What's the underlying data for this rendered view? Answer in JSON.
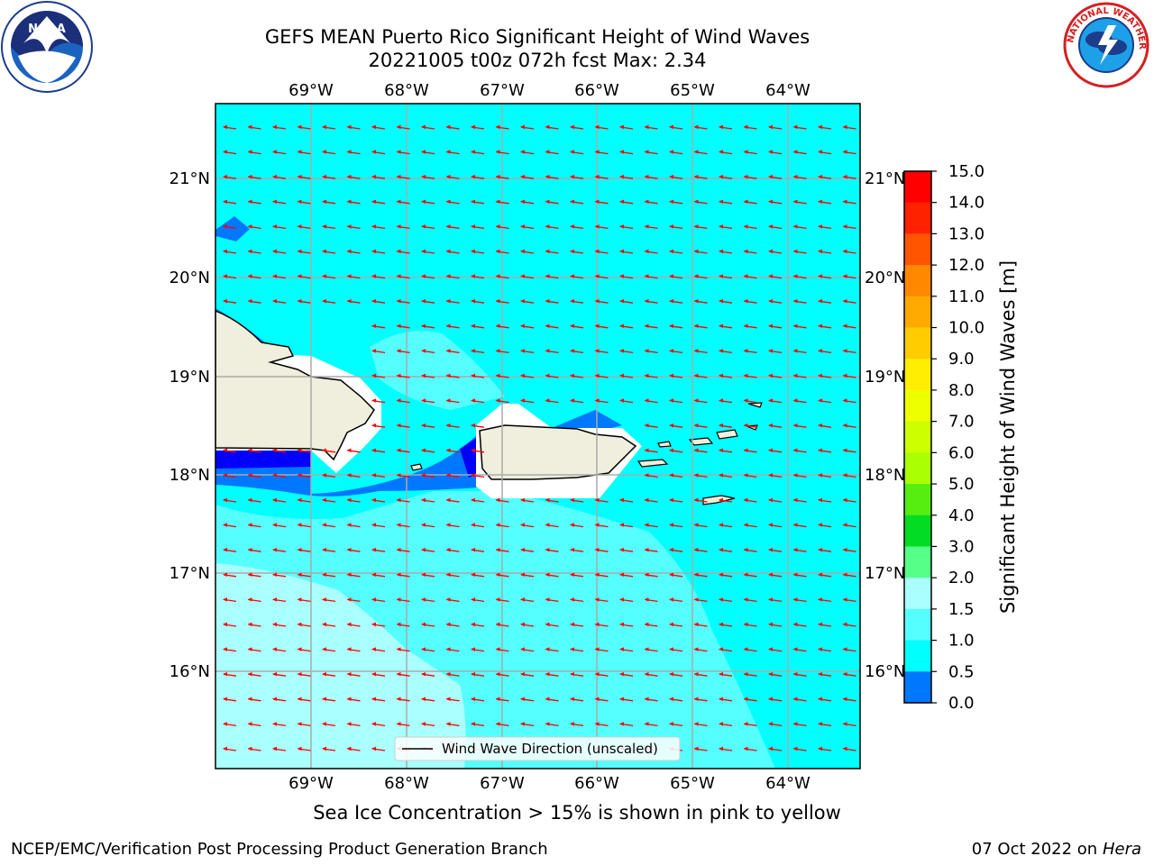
{
  "header": {
    "title_line1": "GEFS MEAN Puerto Rico Significant Height of Wind Waves",
    "title_line2": "20221005 t00z 072h fcst   Max: 2.34"
  },
  "map": {
    "lon_labels": [
      "69°W",
      "68°W",
      "67°W",
      "66°W",
      "65°W",
      "64°W"
    ],
    "lat_labels": [
      "21°N",
      "20°N",
      "19°N",
      "18°N",
      "17°N",
      "16°N"
    ],
    "legend_label": "Wind Wave Direction (unscaled)",
    "ocean_color": "#00ffff",
    "land_color": "#f0eedc",
    "arrow_color": "#ff0000"
  },
  "colorbar": {
    "title": "Significant Height of Wind Waves [m]",
    "ticks": [
      "15.0",
      "14.0",
      "13.0",
      "12.0",
      "11.0",
      "10.0",
      "9.0",
      "8.0",
      "7.0",
      "6.0",
      "5.0",
      "4.0",
      "3.0",
      "2.0",
      "1.5",
      "1.0",
      "0.5",
      "0.0"
    ],
    "colors": [
      "#ff0000",
      "#ff2200",
      "#ff5500",
      "#ff8800",
      "#ffaa00",
      "#ffcc00",
      "#ffee00",
      "#eeff00",
      "#ccff00",
      "#aaff00",
      "#55ee11",
      "#00dd22",
      "#55ff88",
      "#aaffff",
      "#55ffff",
      "#00ffff",
      "#0077ff",
      "#0000ff"
    ]
  },
  "notes": {
    "ice_note": "Sea Ice Concentration > 15% is shown in pink to yellow",
    "credit": "NCEP/EMC/Verification Post Processing Product Generation Branch",
    "date_prefix": "07 Oct 2022 on ",
    "date_machine": "Hera"
  },
  "logos": {
    "noaa_text": "NOAA",
    "nws_text": "NATIONAL WEATHER SERVICE"
  }
}
